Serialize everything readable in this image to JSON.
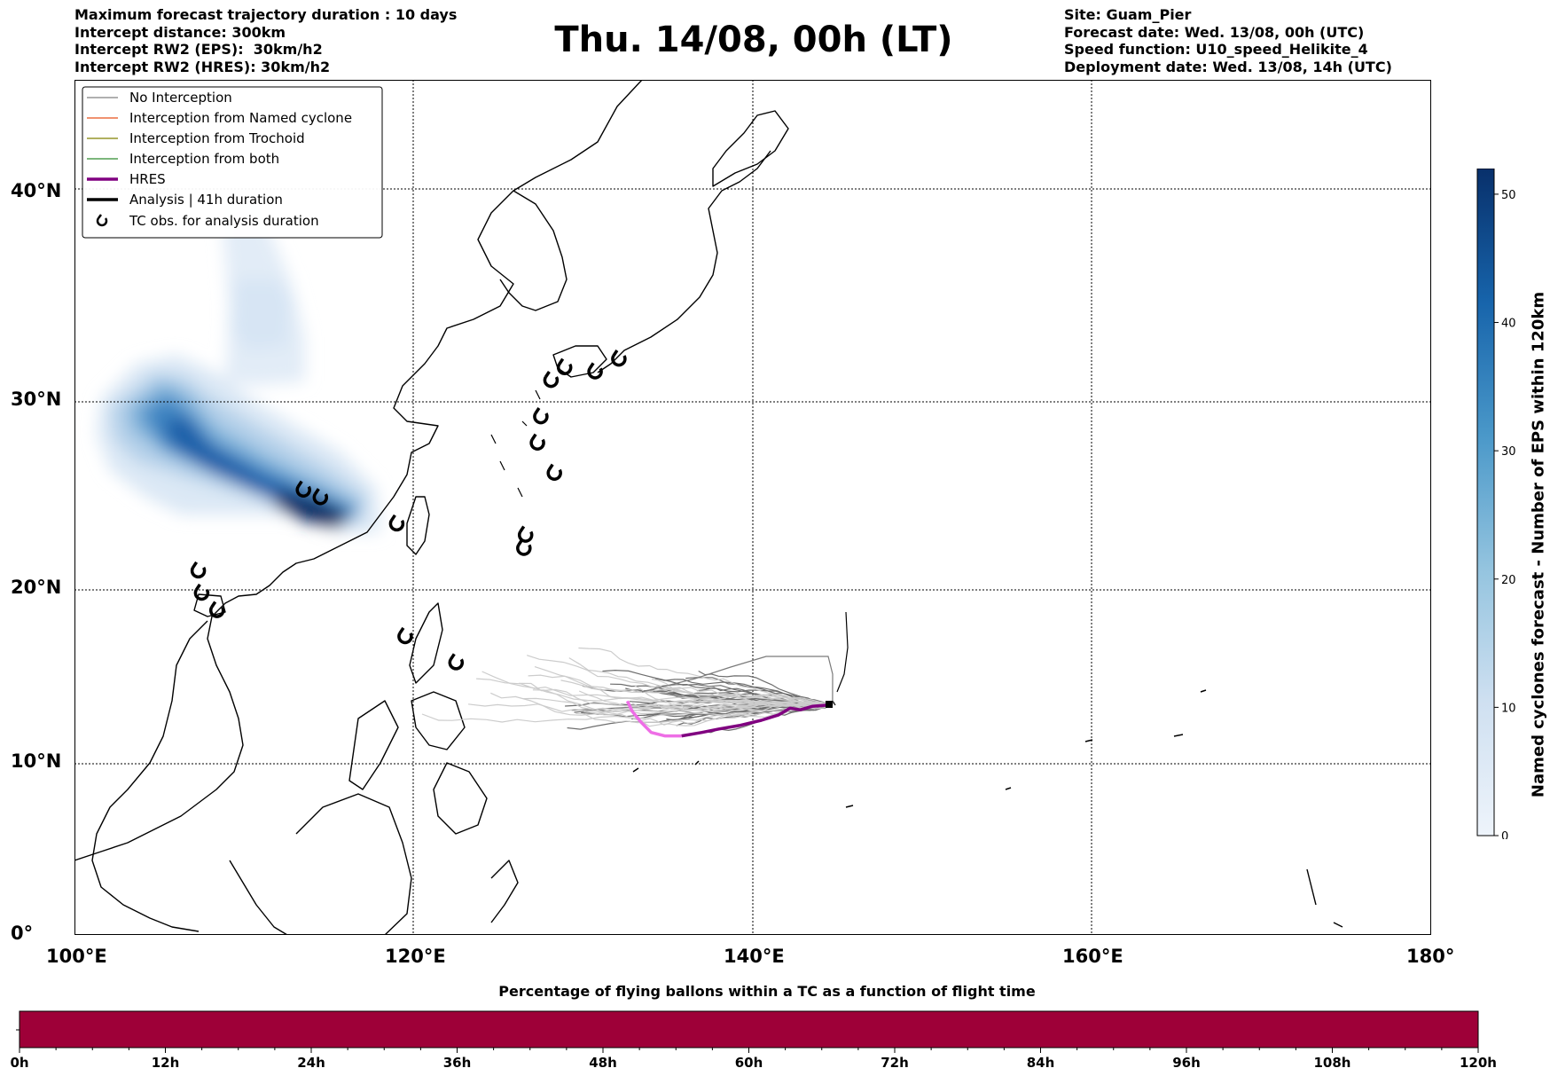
{
  "header_left": [
    "Maximum forecast trajectory duration : 10 days",
    "Intercept distance: 300km",
    "Intercept RW2 (EPS):  30km/h2",
    "Intercept RW2 (HRES): 30km/h2"
  ],
  "header_right": [
    "Site: Guam_Pier",
    "Forecast date: Wed. 13/08, 00h (UTC)",
    "Speed function: U10_speed_Helikite_4",
    "Deployment date: Wed. 13/08, 14h (UTC)"
  ],
  "title": "Thu. 14/08, 00h (LT)",
  "map": {
    "lon_range": [
      100,
      180
    ],
    "lat_range": [
      0,
      44
    ],
    "lon_ticks": [
      "100°E",
      "120°E",
      "140°E",
      "160°E",
      "180°"
    ],
    "lat_ticks": [
      "0°",
      "10°N",
      "20°N",
      "30°N",
      "40°N"
    ],
    "gridlines": true
  },
  "legend": {
    "placement": "top-left",
    "items": [
      {
        "label": "No Interception",
        "color": "#808080",
        "style": "thin-line"
      },
      {
        "label": "Interception from Named cyclone",
        "color": "#e8501a",
        "style": "thin-line"
      },
      {
        "label": "Interception from Trochoid",
        "color": "#808000",
        "style": "thin-line"
      },
      {
        "label": "Interception from both",
        "color": "#2e8b2e",
        "style": "thin-line"
      },
      {
        "label": "HRES",
        "color": "#800080",
        "style": "thick-line"
      },
      {
        "label": "Analysis | 41h duration",
        "color": "#000000",
        "style": "thick-line"
      },
      {
        "label": "TC obs. for analysis duration",
        "color": "#000000",
        "style": "tc-symbol"
      }
    ]
  },
  "colorbar": {
    "label": "Named cyclones forecast - Number of EPS within 120km",
    "ticks": [
      "0",
      "10",
      "20",
      "30",
      "40",
      "50"
    ],
    "range": [
      0,
      52
    ],
    "color_low": "#e8f0fa",
    "color_high": "#08306b"
  },
  "bottom_bar": {
    "title": "Percentage of flying ballons within a TC as a function of flight time",
    "ticks": [
      "0h",
      "12h",
      "24h",
      "36h",
      "48h",
      "60h",
      "72h",
      "84h",
      "96h",
      "108h",
      "120h"
    ],
    "fill_color": "#9e0038",
    "value_percent": 0
  },
  "tc_observations": [
    [
      113.5,
      25.3
    ],
    [
      114.5,
      24.9
    ],
    [
      119,
      23.5
    ],
    [
      126.5,
      22.2
    ],
    [
      126.6,
      22.9
    ],
    [
      128.3,
      26.2
    ],
    [
      127.3,
      27.8
    ],
    [
      127.5,
      29.2
    ],
    [
      128.1,
      31.0
    ],
    [
      128.9,
      31.6
    ],
    [
      130.7,
      31.4
    ],
    [
      132.1,
      32.0
    ],
    [
      107.3,
      21.0
    ],
    [
      107.5,
      19.8
    ],
    [
      108.4,
      18.8
    ],
    [
      119.5,
      17.3
    ],
    [
      122.5,
      15.8
    ]
  ],
  "hres_track": [
    [
      144.7,
      13.4
    ],
    [
      143.5,
      13.3
    ],
    [
      142.8,
      13.1
    ],
    [
      142.2,
      13.2
    ],
    [
      141.5,
      12.8
    ],
    [
      140.5,
      12.5
    ],
    [
      139.2,
      12.2
    ],
    [
      138,
      12.0
    ],
    [
      137,
      11.8
    ],
    [
      135.8,
      11.6
    ]
  ],
  "hres_track_late": [
    [
      135.8,
      11.6
    ],
    [
      134.8,
      11.6
    ],
    [
      134.0,
      11.8
    ],
    [
      133.4,
      12.4
    ],
    [
      132.9,
      13.0
    ],
    [
      132.6,
      13.6
    ]
  ]
}
